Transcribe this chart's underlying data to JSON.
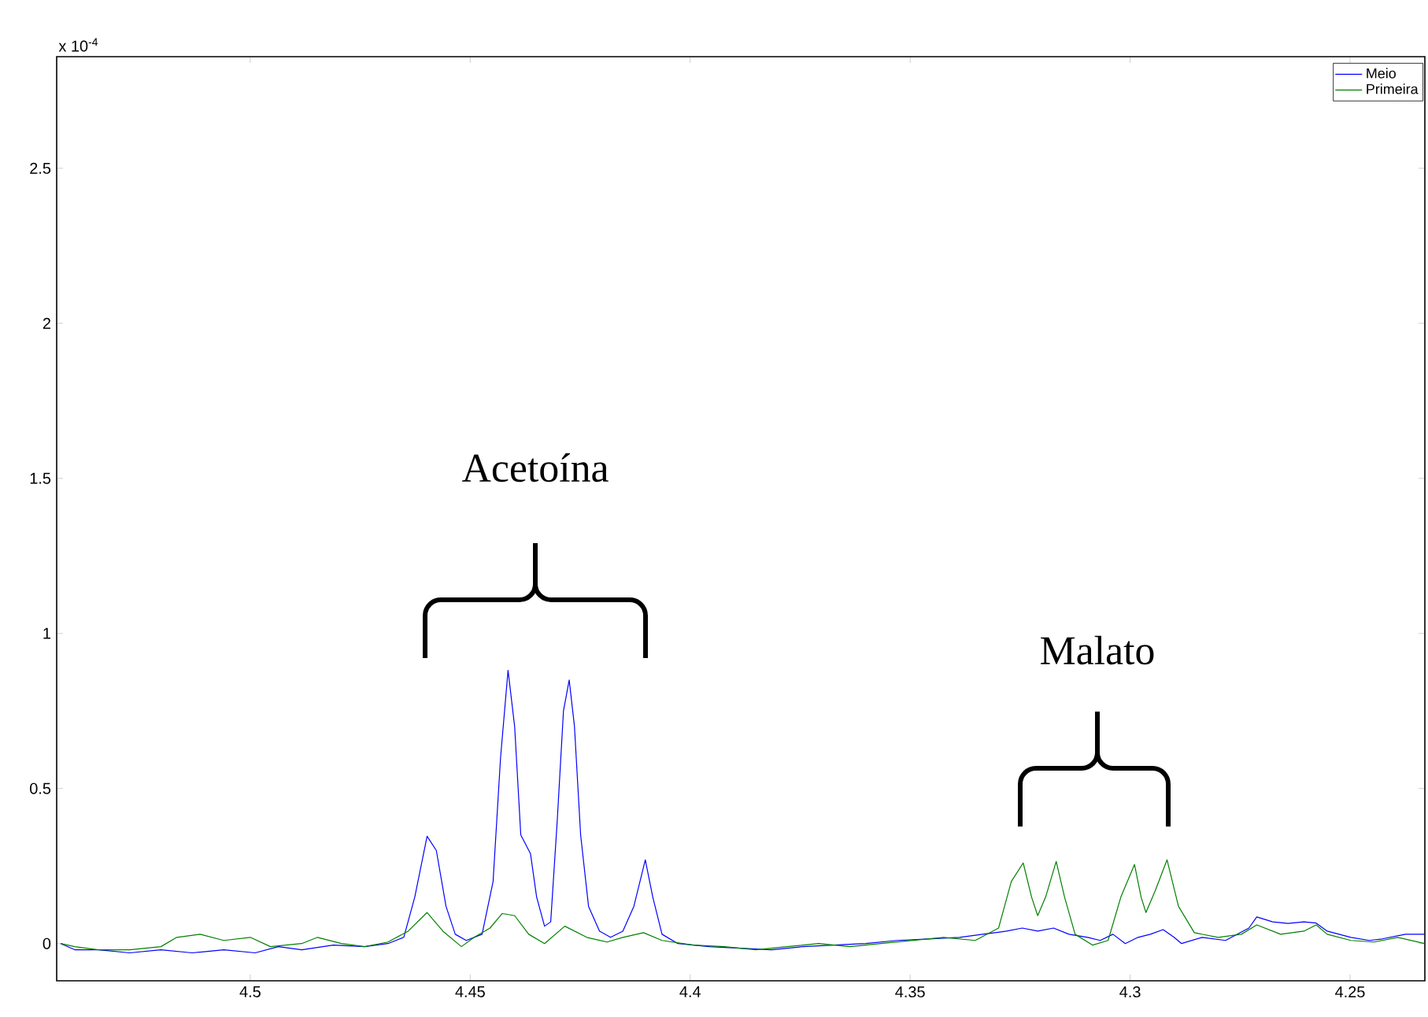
{
  "chart_data": {
    "type": "line",
    "xlim": [
      4.544,
      4.233
    ],
    "ylim": [
      -0.12,
      2.86
    ],
    "xticks": [
      4.5,
      4.45,
      4.4,
      4.35,
      4.3,
      4.25
    ],
    "yticks": [
      0,
      0.5,
      1,
      1.5,
      2,
      2.5
    ],
    "grid": false,
    "legend": "top right",
    "marker": "none",
    "line_style": "solid",
    "annotations": [
      "x 10$^{-4}$",
      "Acetoína",
      "Malato"
    ],
    "series": [
      {
        "name": "Meio",
        "color": "#0000ff",
        "x": [
          4.5431,
          4.5399,
          4.5345,
          4.5274,
          4.5203,
          4.5132,
          4.506,
          4.4989,
          4.4936,
          4.4883,
          4.4811,
          4.474,
          4.4687,
          4.4651,
          4.4626,
          4.4598,
          4.4577,
          4.4555,
          4.4534,
          4.4509,
          4.4473,
          4.4448,
          4.4431,
          4.4414,
          4.4399,
          4.4385,
          4.4363,
          4.4349,
          4.4331,
          4.4317,
          4.4302,
          4.4288,
          4.4275,
          4.4263,
          4.4249,
          4.4231,
          4.4206,
          4.4181,
          4.4153,
          4.4128,
          4.4102,
          4.4085,
          4.4064,
          4.4028,
          4.3957,
          4.3886,
          4.3815,
          4.3744,
          4.3673,
          4.3601,
          4.353,
          4.3459,
          4.3388,
          4.3335,
          4.3281,
          4.3245,
          4.321,
          4.3174,
          4.3139,
          4.3096,
          4.3068,
          4.3039,
          4.3011,
          4.2982,
          4.2954,
          4.2925,
          4.29,
          4.2883,
          4.2836,
          4.2783,
          4.273,
          4.2712,
          4.2676,
          4.2641,
          4.2605,
          4.2577,
          4.2552,
          4.2498,
          4.2456,
          4.2427,
          4.2374,
          4.2331
        ],
        "values": [
          0.0,
          -0.02,
          -0.02,
          -0.03,
          -0.02,
          -0.03,
          -0.02,
          -0.03,
          -0.01,
          -0.02,
          -0.005,
          -0.01,
          0.0,
          0.02,
          0.15,
          0.346,
          0.3,
          0.12,
          0.03,
          0.01,
          0.03,
          0.2,
          0.6,
          0.881,
          0.7,
          0.35,
          0.29,
          0.15,
          0.056,
          0.07,
          0.4,
          0.75,
          0.85,
          0.7,
          0.35,
          0.12,
          0.04,
          0.02,
          0.04,
          0.12,
          0.27,
          0.15,
          0.03,
          0.0,
          -0.01,
          -0.015,
          -0.02,
          -0.01,
          -0.005,
          0.0,
          0.01,
          0.015,
          0.02,
          0.03,
          0.04,
          0.05,
          0.04,
          0.05,
          0.03,
          0.02,
          0.01,
          0.03,
          0.0,
          0.02,
          0.03,
          0.045,
          0.02,
          0.0,
          0.02,
          0.01,
          0.05,
          0.086,
          0.07,
          0.065,
          0.07,
          0.066,
          0.04,
          0.02,
          0.01,
          0.015,
          0.03,
          0.03
        ]
      },
      {
        "name": "Primeira",
        "color": "#008000",
        "x": [
          4.5431,
          4.5399,
          4.5345,
          4.5274,
          4.5203,
          4.5167,
          4.5114,
          4.506,
          4.5,
          4.4954,
          4.4883,
          4.4847,
          4.4793,
          4.474,
          4.4687,
          4.4641,
          4.4598,
          4.4562,
          4.452,
          4.4491,
          4.4455,
          4.4427,
          4.4399,
          4.4367,
          4.4331,
          4.4285,
          4.4235,
          4.4189,
          4.4153,
          4.4106,
          4.4064,
          4.3993,
          4.3922,
          4.3851,
          4.378,
          4.3708,
          4.3637,
          4.3566,
          4.3495,
          4.3424,
          4.3352,
          4.3299,
          4.327,
          4.3243,
          4.3224,
          4.321,
          4.3192,
          4.3168,
          4.3149,
          4.3125,
          4.3085,
          4.305,
          4.3021,
          4.299,
          4.2975,
          4.2964,
          4.2943,
          4.2916,
          4.289,
          4.2854,
          4.28,
          4.2747,
          4.2712,
          4.2658,
          4.2605,
          4.2577,
          4.2552,
          4.2498,
          4.2445,
          4.2392,
          4.2331
        ],
        "values": [
          0.0,
          -0.01,
          -0.02,
          -0.02,
          -0.01,
          0.02,
          0.03,
          0.01,
          0.02,
          -0.01,
          0.0,
          0.02,
          0.0,
          -0.01,
          0.005,
          0.04,
          0.1,
          0.04,
          -0.01,
          0.02,
          0.05,
          0.097,
          0.09,
          0.03,
          0.0,
          0.056,
          0.02,
          0.005,
          0.02,
          0.035,
          0.01,
          -0.005,
          -0.01,
          -0.02,
          -0.01,
          0.0,
          -0.01,
          0.0,
          0.01,
          0.02,
          0.01,
          0.05,
          0.2,
          0.26,
          0.15,
          0.09,
          0.15,
          0.265,
          0.15,
          0.03,
          -0.005,
          0.01,
          0.15,
          0.255,
          0.15,
          0.1,
          0.17,
          0.27,
          0.12,
          0.035,
          0.02,
          0.03,
          0.06,
          0.03,
          0.04,
          0.06,
          0.03,
          0.01,
          0.005,
          0.02,
          0.0
        ]
      }
    ]
  }
}
